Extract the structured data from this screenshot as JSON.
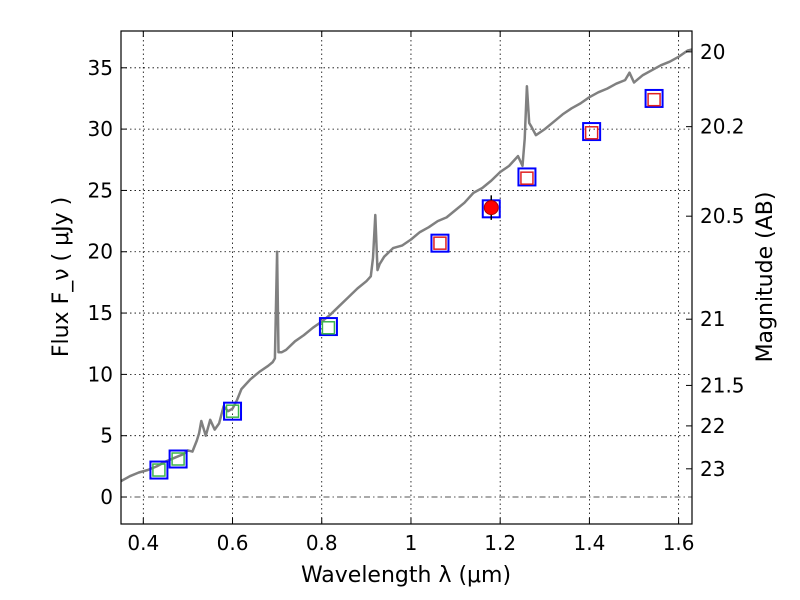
{
  "chart_data": {
    "type": "scatter",
    "xlabel": "Wavelength  λ (μm)",
    "ylabel": "Flux  F_ν  ( μJy )",
    "ylabel_right": "Magnitude (AB)",
    "xlim": [
      0.35,
      1.63
    ],
    "ylim": [
      -2.2,
      38
    ],
    "grid": true,
    "x_ticks": [
      0.4,
      0.6,
      0.8,
      1.0,
      1.2,
      1.4,
      1.6
    ],
    "x_tick_labels": [
      "0.4",
      "0.6",
      "0.8",
      "1",
      "1.2",
      "1.4",
      "1.6"
    ],
    "y_ticks": [
      0,
      5,
      10,
      15,
      20,
      25,
      30,
      35
    ],
    "y_tick_labels": [
      "0",
      "5",
      "10",
      "15",
      "20",
      "25",
      "30",
      "35"
    ],
    "right_ticks": [
      {
        "label": "20",
        "flux": 36.3
      },
      {
        "label": "20.2",
        "flux": 30.2
      },
      {
        "label": "20.5",
        "flux": 22.9
      },
      {
        "label": "21",
        "flux": 14.5
      },
      {
        "label": "21.5",
        "flux": 9.1
      },
      {
        "label": "22",
        "flux": 5.8
      },
      {
        "label": "23",
        "flux": 2.3
      }
    ],
    "zero_line": 0,
    "model_spectrum": {
      "name": "model",
      "color": "#808080",
      "points": [
        [
          0.35,
          1.3
        ],
        [
          0.37,
          1.7
        ],
        [
          0.39,
          2.0
        ],
        [
          0.41,
          2.2
        ],
        [
          0.43,
          2.5
        ],
        [
          0.45,
          2.9
        ],
        [
          0.47,
          3.2
        ],
        [
          0.49,
          3.5
        ],
        [
          0.5,
          3.8
        ],
        [
          0.51,
          3.7
        ],
        [
          0.52,
          4.6
        ],
        [
          0.525,
          5.2
        ],
        [
          0.53,
          6.2
        ],
        [
          0.54,
          5.0
        ],
        [
          0.55,
          6.3
        ],
        [
          0.56,
          5.5
        ],
        [
          0.57,
          6.0
        ],
        [
          0.58,
          7.4
        ],
        [
          0.59,
          7.0
        ],
        [
          0.6,
          7.2
        ],
        [
          0.61,
          7.9
        ],
        [
          0.62,
          8.8
        ],
        [
          0.64,
          9.6
        ],
        [
          0.66,
          10.2
        ],
        [
          0.68,
          10.7
        ],
        [
          0.69,
          11.0
        ],
        [
          0.695,
          11.3
        ],
        [
          0.7,
          20.0
        ],
        [
          0.703,
          11.8
        ],
        [
          0.71,
          11.8
        ],
        [
          0.72,
          12.0
        ],
        [
          0.74,
          12.7
        ],
        [
          0.76,
          13.2
        ],
        [
          0.78,
          13.8
        ],
        [
          0.8,
          14.3
        ],
        [
          0.82,
          14.9
        ],
        [
          0.84,
          15.6
        ],
        [
          0.86,
          16.3
        ],
        [
          0.88,
          17.0
        ],
        [
          0.9,
          17.6
        ],
        [
          0.91,
          18.0
        ],
        [
          0.915,
          19.5
        ],
        [
          0.92,
          23.0
        ],
        [
          0.925,
          18.5
        ],
        [
          0.93,
          19.0
        ],
        [
          0.94,
          19.6
        ],
        [
          0.96,
          20.3
        ],
        [
          0.98,
          20.5
        ],
        [
          1.0,
          21.0
        ],
        [
          1.02,
          21.6
        ],
        [
          1.04,
          22.0
        ],
        [
          1.06,
          22.5
        ],
        [
          1.08,
          22.8
        ],
        [
          1.1,
          23.4
        ],
        [
          1.12,
          24.0
        ],
        [
          1.14,
          24.8
        ],
        [
          1.16,
          25.2
        ],
        [
          1.18,
          25.8
        ],
        [
          1.2,
          26.5
        ],
        [
          1.22,
          27.0
        ],
        [
          1.24,
          27.8
        ],
        [
          1.25,
          27.0
        ],
        [
          1.255,
          29.2
        ],
        [
          1.26,
          33.5
        ],
        [
          1.265,
          30.5
        ],
        [
          1.27,
          30.2
        ],
        [
          1.28,
          29.5
        ],
        [
          1.3,
          30.0
        ],
        [
          1.32,
          30.6
        ],
        [
          1.34,
          31.2
        ],
        [
          1.36,
          31.7
        ],
        [
          1.38,
          32.1
        ],
        [
          1.4,
          32.6
        ],
        [
          1.42,
          33.0
        ],
        [
          1.44,
          33.3
        ],
        [
          1.46,
          33.7
        ],
        [
          1.48,
          34.0
        ],
        [
          1.49,
          34.6
        ],
        [
          1.5,
          33.8
        ],
        [
          1.52,
          34.4
        ],
        [
          1.54,
          34.8
        ],
        [
          1.56,
          35.2
        ],
        [
          1.58,
          35.5
        ],
        [
          1.6,
          35.9
        ],
        [
          1.62,
          36.4
        ],
        [
          1.63,
          36.5
        ]
      ]
    },
    "series": [
      {
        "name": "observed (blue squares)",
        "color": "#0000ff",
        "marker": "square-large",
        "points": [
          [
            0.435,
            2.2
          ],
          [
            0.478,
            3.1
          ],
          [
            0.6,
            7.0
          ],
          [
            0.815,
            13.9
          ],
          [
            1.065,
            20.7
          ],
          [
            1.18,
            23.5
          ],
          [
            1.26,
            26.1
          ],
          [
            1.405,
            29.8
          ],
          [
            1.545,
            32.5
          ]
        ]
      },
      {
        "name": "synthetic optical (green squares)",
        "color": "#3cb44b",
        "marker": "square-small",
        "points": [
          [
            0.435,
            2.2
          ],
          [
            0.478,
            3.1
          ],
          [
            0.6,
            7.0
          ],
          [
            0.815,
            13.8
          ]
        ]
      },
      {
        "name": "synthetic NIR (red squares)",
        "color": "#e02020",
        "marker": "square-small",
        "points": [
          [
            1.065,
            20.7
          ],
          [
            1.26,
            26.0
          ],
          [
            1.405,
            29.7
          ],
          [
            1.545,
            32.4
          ]
        ]
      },
      {
        "name": "detection (red circle)",
        "color": "#ff0000",
        "marker": "circle",
        "points": [
          [
            1.18,
            23.6
          ]
        ],
        "yerr": [
          1.0
        ]
      }
    ]
  }
}
